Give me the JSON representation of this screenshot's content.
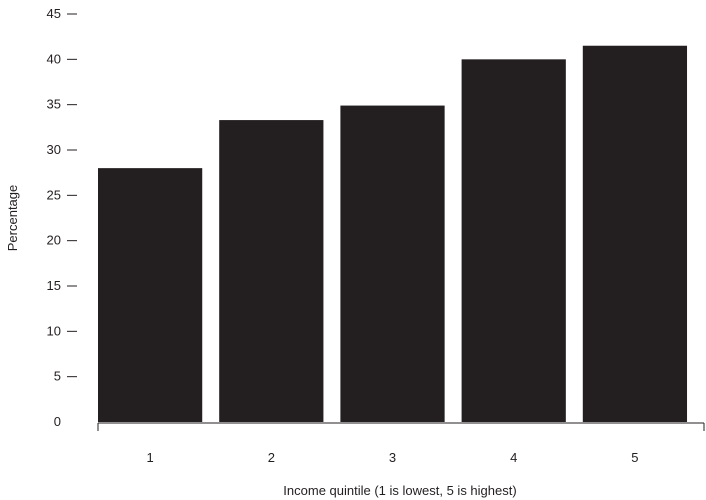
{
  "chart_data": {
    "type": "bar",
    "title": "",
    "xlabel": "Income quintile (1 is lowest, 5 is highest)",
    "ylabel": "Percentage",
    "categories": [
      "1",
      "2",
      "3",
      "4",
      "5"
    ],
    "values": [
      28,
      33.3,
      34.9,
      40,
      41.5
    ],
    "ylim": [
      0,
      45
    ],
    "yticks": [
      0,
      5,
      10,
      15,
      20,
      25,
      30,
      35,
      40,
      45
    ],
    "grid": false,
    "legend": "none",
    "bar_color": "#231f20"
  }
}
